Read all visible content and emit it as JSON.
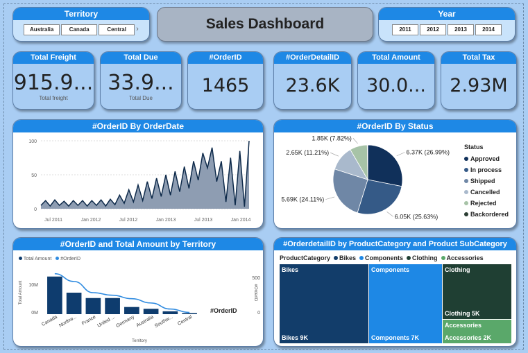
{
  "title": "Sales Dashboard",
  "territory_slicer": {
    "title": "Territory",
    "options": [
      "Australia",
      "Canada",
      "Central"
    ]
  },
  "year_slicer": {
    "title": "Year",
    "options": [
      "2011",
      "2012",
      "2013",
      "2014"
    ]
  },
  "kpis": [
    {
      "label": "Total Freight",
      "value": "915.9...",
      "sub": "Total freight"
    },
    {
      "label": "Total Due",
      "value": "33.9...",
      "sub": "Total Due"
    },
    {
      "label": "#OrderID",
      "value": "1465",
      "sub": ""
    },
    {
      "label": "#OrderDetailID",
      "value": "23.6K",
      "sub": ""
    },
    {
      "label": "Total Amount",
      "value": "30.0...",
      "sub": ""
    },
    {
      "label": "Total Tax",
      "value": "2.93M",
      "sub": ""
    }
  ],
  "colors": {
    "accent": "#1e88e5",
    "navy": "#0e3c6e",
    "bg": "#a9cdf3"
  },
  "chart_data": [
    {
      "type": "area",
      "title": "#OrderID By OrderDate",
      "x_ticks": [
        "Jul 2011",
        "Jan 2012",
        "Jul 2012",
        "Jan 2013",
        "Jul 2013",
        "Jan 2014"
      ],
      "y_ticks": [
        "100",
        "50",
        "0"
      ],
      "ylim": [
        0,
        100
      ],
      "values": [
        5,
        12,
        4,
        13,
        5,
        11,
        4,
        12,
        5,
        12,
        4,
        12,
        5,
        13,
        4,
        14,
        6,
        20,
        8,
        28,
        10,
        35,
        12,
        40,
        15,
        45,
        18,
        50,
        20,
        55,
        25,
        62,
        30,
        70,
        42,
        82,
        60,
        90,
        40,
        70,
        10,
        75,
        5,
        85,
        3,
        100
      ]
    },
    {
      "type": "pie",
      "title": "#OrderID By Status",
      "legend_title": "Status",
      "slices": [
        {
          "name": "Approved",
          "value": 6370,
          "label": "6.37K (26.99%)",
          "color": "#10305a"
        },
        {
          "name": "In process",
          "value": 6050,
          "label": "6.05K (25.63%)",
          "color": "#355a87"
        },
        {
          "name": "Shipped",
          "value": 5690,
          "label": "5.69K (24.11%)",
          "color": "#6f87a6"
        },
        {
          "name": "Cancelled",
          "value": 2650,
          "label": "2.65K (11.21%)",
          "color": "#a9b9cc"
        },
        {
          "name": "Rejected",
          "value": 1850,
          "label": "1.85K (7.82%)",
          "color": "#a7c3a7"
        },
        {
          "name": "Backordered",
          "value": 50,
          "label": "",
          "color": "#2b3d33"
        }
      ]
    },
    {
      "type": "bar",
      "title": "#OrderID and Total Amount by Territory",
      "legend": [
        "Total Amount",
        "#OrderID"
      ],
      "categories": [
        "Canada",
        "Northw...",
        "France",
        "United ...",
        "Germany",
        "Australia",
        "Southw...",
        "Central"
      ],
      "series": [
        {
          "name": "Total Amount",
          "values": [
            10.5,
            6.0,
            4.5,
            4.5,
            2.0,
            1.5,
            0.8,
            0.3
          ]
        },
        {
          "name": "#OrderID",
          "values": [
            470,
            380,
            250,
            220,
            180,
            130,
            60,
            20
          ]
        }
      ],
      "xlabel": "Territory",
      "ylabel": "Total Amount",
      "y2label": "#OrderID",
      "y_ticks": [
        "10M",
        "0M"
      ],
      "y2_ticks": [
        "500",
        "0"
      ],
      "series_label": "#OrderID"
    },
    {
      "type": "treemap",
      "title": "#OrderdetailID by ProductCategory and Product SubCategory",
      "legend_title": "ProductCategory",
      "legend": [
        {
          "name": "Bikes",
          "color": "#123d6a"
        },
        {
          "name": "Components",
          "color": "#1e88e5"
        },
        {
          "name": "Clothing",
          "color": "#1f3f33"
        },
        {
          "name": "Accessories",
          "color": "#5aa86a"
        }
      ],
      "tiles": [
        {
          "category": "Bikes",
          "label": "Bikes 9K",
          "value": 9000
        },
        {
          "category": "Components",
          "label": "Components 7K",
          "value": 7000
        },
        {
          "category": "Clothing",
          "label": "Clothing 5K",
          "value": 5000
        },
        {
          "category": "Accessories",
          "label": "Accessories 2K",
          "value": 2000
        }
      ]
    }
  ]
}
